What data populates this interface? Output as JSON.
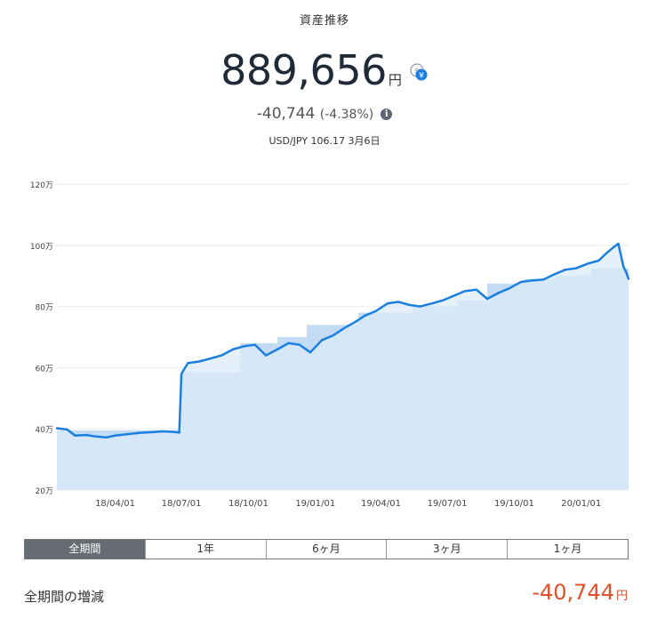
{
  "header": {
    "title": "資産推移",
    "total_value": "889,656",
    "total_unit": "円",
    "change_amount": "-40,744",
    "change_percent": "(-4.38%)",
    "rate_text": "USD/JPY 106.17 3月6日"
  },
  "tabs": [
    {
      "label": "全期間",
      "active": true
    },
    {
      "label": "1年",
      "active": false
    },
    {
      "label": "6ヶ月",
      "active": false
    },
    {
      "label": "3ヶ月",
      "active": false
    },
    {
      "label": "1ヶ月",
      "active": false
    }
  ],
  "summary": {
    "label": "全期間の増減",
    "value": "-40,744",
    "unit": "円"
  },
  "colors": {
    "line": "#1a7fe0",
    "area": "#dcebf9",
    "negative": "#e0502a",
    "active_tab": "#666b74"
  },
  "chart_data": {
    "type": "area",
    "y_unit": "万円",
    "ylim": [
      20,
      120
    ],
    "y_ticks": [
      "120万",
      "100万",
      "80万",
      "60万",
      "40万",
      "20万"
    ],
    "y_tick_values": [
      120,
      100,
      80,
      60,
      40,
      20
    ],
    "x_ticks": [
      "18/04/01",
      "18/07/01",
      "18/10/01",
      "19/01/01",
      "19/04/01",
      "19/07/01",
      "19/10/01",
      "20/01/01"
    ],
    "x_tick_dates": [
      "2018-04-01",
      "2018-07-01",
      "2018-10-01",
      "2019-01-01",
      "2019-04-01",
      "2019-07-01",
      "2019-10-01",
      "2020-01-01"
    ],
    "x_range": [
      "2018-01-11",
      "2020-03-06"
    ],
    "series": [
      {
        "role": "valuation",
        "x": [
          "2018-01-11",
          "2018-01-25",
          "2018-02-05",
          "2018-02-20",
          "2018-03-05",
          "2018-03-20",
          "2018-04-01",
          "2018-04-20",
          "2018-05-05",
          "2018-05-20",
          "2018-06-05",
          "2018-06-20",
          "2018-06-28",
          "2018-07-01",
          "2018-07-10",
          "2018-07-25",
          "2018-08-10",
          "2018-08-25",
          "2018-09-10",
          "2018-09-25",
          "2018-10-10",
          "2018-10-25",
          "2018-11-10",
          "2018-11-25",
          "2018-12-10",
          "2018-12-25",
          "2019-01-10",
          "2019-01-25",
          "2019-02-10",
          "2019-02-25",
          "2019-03-10",
          "2019-03-25",
          "2019-04-10",
          "2019-04-25",
          "2019-05-10",
          "2019-05-25",
          "2019-06-10",
          "2019-06-25",
          "2019-07-10",
          "2019-07-25",
          "2019-08-10",
          "2019-08-25",
          "2019-09-10",
          "2019-09-25",
          "2019-10-10",
          "2019-10-25",
          "2019-11-10",
          "2019-11-25",
          "2019-12-10",
          "2019-12-25",
          "2020-01-10",
          "2020-01-25",
          "2020-02-05",
          "2020-02-15",
          "2020-02-21",
          "2020-02-28",
          "2020-03-03",
          "2020-03-06"
        ],
        "values": [
          40.2,
          39.8,
          37.8,
          38.0,
          37.5,
          37.2,
          37.8,
          38.3,
          38.7,
          38.9,
          39.2,
          39.0,
          38.8,
          58.0,
          61.5,
          62.0,
          63.0,
          64.0,
          66.0,
          67.0,
          67.5,
          64.0,
          66.0,
          68.0,
          67.5,
          65.0,
          69.0,
          70.5,
          73.0,
          75.0,
          77.0,
          78.5,
          81.0,
          81.5,
          80.5,
          80.0,
          81.0,
          82.0,
          83.5,
          85.0,
          85.5,
          82.5,
          84.5,
          86.0,
          88.0,
          88.5,
          88.8,
          90.5,
          92.0,
          92.5,
          94.0,
          95.0,
          97.5,
          99.5,
          100.5,
          93.0,
          91.0,
          89.0
        ]
      },
      {
        "role": "cost_basis",
        "x": [
          "2018-01-11",
          "2018-06-28",
          "2018-07-01",
          "2018-09-20",
          "2018-11-10",
          "2018-12-20",
          "2019-03-01",
          "2019-05-15",
          "2019-07-15",
          "2019-08-25",
          "2019-10-15",
          "2019-11-25",
          "2020-01-01",
          "2020-01-15",
          "2020-03-06"
        ],
        "values": [
          39.5,
          39.5,
          58.5,
          68.0,
          70.0,
          74.0,
          78.0,
          80.0,
          82.0,
          87.5,
          89.0,
          90.0,
          90.5,
          92.5,
          92.5
        ]
      }
    ]
  }
}
